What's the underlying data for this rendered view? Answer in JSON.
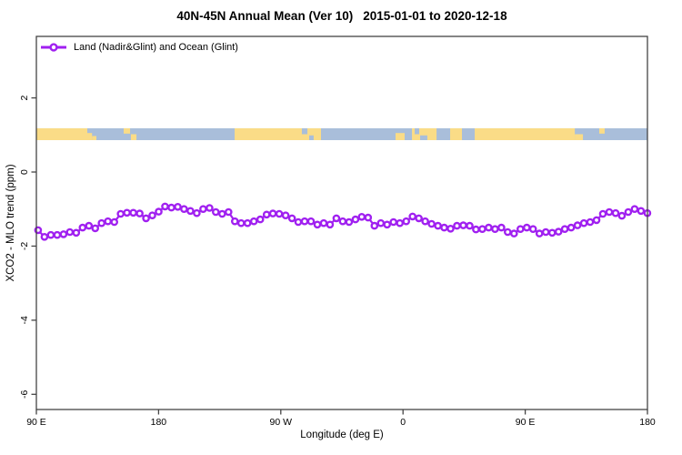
{
  "title_main": "40N-45N Annual Mean (Ver 10)",
  "title_dates": "2015-01-01 to 2020-12-18",
  "legend": {
    "label": "Land (Nadir&Glint) and Ocean (Glint)"
  },
  "colors": {
    "series": "#A020F0",
    "marker_fill": "#ffffff",
    "land": "#FADC87",
    "ocean": "#A9BEDA",
    "frame": "#444444",
    "text": "#000000"
  },
  "chart_data": {
    "type": "line",
    "title": "40N-45N Annual Mean (Ver 10)  2015-01-01 to 2020-12-18",
    "xlabel": "Longitude (deg E)",
    "ylabel": "XCO2 - MLO trend (ppm)",
    "xlim": [
      90,
      540
    ],
    "ylim": [
      -6.41,
      3.66
    ],
    "grid": false,
    "legend_position": "top-left-inside",
    "x_ticks": [
      {
        "lon": 90,
        "label": "90 E"
      },
      {
        "lon": 180,
        "label": "180"
      },
      {
        "lon": 270,
        "label": "90 W"
      },
      {
        "lon": 360,
        "label": "0"
      },
      {
        "lon": 450,
        "label": "90 E"
      },
      {
        "lon": 540,
        "label": "180"
      }
    ],
    "y_ticks": [
      {
        "v": 2,
        "label": "2"
      },
      {
        "v": 0,
        "label": "0"
      },
      {
        "v": -2,
        "label": "-2"
      },
      {
        "v": -4,
        "label": "-4"
      },
      {
        "v": -6,
        "label": "-6"
      }
    ],
    "map_strip": {
      "description": "land/ocean mask band at 40N-45N",
      "y_range": [
        0.86,
        1.18
      ],
      "land_color": "#FADC87",
      "ocean_color": "#A9BEDA",
      "land": [
        {
          "from": 90.0,
          "to": 127.5
        },
        {
          "from": 127.5,
          "to": 131.0,
          "h": 0.6,
          "align": "bottom"
        },
        {
          "from": 131.0,
          "to": 134.2,
          "h": 0.35,
          "align": "bottom"
        },
        {
          "from": 154.3,
          "to": 159.0,
          "h": 0.45,
          "align": "top"
        },
        {
          "from": 159.6,
          "to": 163.7,
          "h": 0.5,
          "align": "bottom"
        },
        {
          "from": 236.0,
          "to": 299.6
        },
        {
          "from": 354.5,
          "to": 361.2,
          "h": 0.6,
          "align": "bottom"
        },
        {
          "from": 366.6,
          "to": 384.7
        },
        {
          "from": 394.7,
          "to": 403.4
        },
        {
          "from": 412.8,
          "to": 486.5
        },
        {
          "from": 486.5,
          "to": 492.5,
          "h": 0.5,
          "align": "bottom"
        },
        {
          "from": 504.5,
          "to": 508.5,
          "h": 0.45,
          "align": "top"
        }
      ],
      "ocean_patches": [
        {
          "from": 285.5,
          "to": 289.6,
          "h": 0.5,
          "align": "top"
        },
        {
          "from": 290.9,
          "to": 294.2,
          "h": 0.4,
          "align": "bottom"
        },
        {
          "from": 368.6,
          "to": 371.9,
          "h": 0.5,
          "align": "top"
        },
        {
          "from": 372.6,
          "to": 377.9,
          "h": 0.4,
          "align": "bottom"
        }
      ]
    },
    "series": [
      {
        "name": "Land (Nadir&Glint) and Ocean (Glint)",
        "color": "#A020F0",
        "marker": "open-circle",
        "lon_start": 91.3,
        "lon_end": 539.9,
        "values": [
          -1.57,
          -1.75,
          -1.7,
          -1.7,
          -1.68,
          -1.62,
          -1.64,
          -1.5,
          -1.45,
          -1.52,
          -1.38,
          -1.33,
          -1.35,
          -1.13,
          -1.1,
          -1.1,
          -1.12,
          -1.25,
          -1.17,
          -1.07,
          -0.93,
          -0.96,
          -0.94,
          -1.0,
          -1.05,
          -1.11,
          -1.0,
          -0.97,
          -1.08,
          -1.13,
          -1.08,
          -1.33,
          -1.38,
          -1.38,
          -1.33,
          -1.28,
          -1.15,
          -1.12,
          -1.13,
          -1.17,
          -1.25,
          -1.35,
          -1.33,
          -1.33,
          -1.42,
          -1.38,
          -1.42,
          -1.25,
          -1.33,
          -1.35,
          -1.28,
          -1.21,
          -1.23,
          -1.45,
          -1.38,
          -1.42,
          -1.35,
          -1.38,
          -1.33,
          -1.2,
          -1.25,
          -1.33,
          -1.4,
          -1.45,
          -1.5,
          -1.53,
          -1.45,
          -1.44,
          -1.45,
          -1.55,
          -1.54,
          -1.5,
          -1.54,
          -1.5,
          -1.62,
          -1.66,
          -1.54,
          -1.5,
          -1.54,
          -1.66,
          -1.62,
          -1.64,
          -1.61,
          -1.54,
          -1.5,
          -1.44,
          -1.38,
          -1.35,
          -1.3,
          -1.13,
          -1.08,
          -1.11,
          -1.18,
          -1.08,
          -1.0,
          -1.05,
          -1.11
        ]
      }
    ]
  }
}
